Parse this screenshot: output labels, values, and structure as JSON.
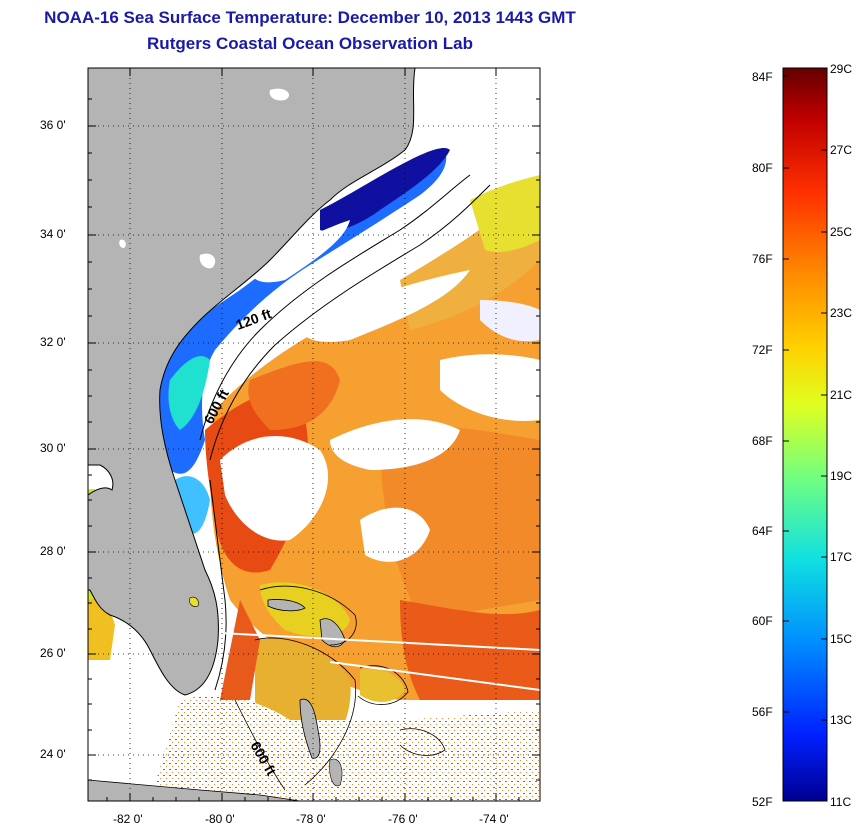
{
  "header": {
    "title": "NOAA-16 Sea Surface Temperature:  December 10, 2013 1443 GMT",
    "subtitle": "Rutgers Coastal Ocean Observation Lab"
  },
  "axes": {
    "lat_labels": [
      "36 0'",
      "34 0'",
      "32 0'",
      "30 0'",
      "28 0'",
      "26 0'",
      "24 0'"
    ],
    "lon_labels": [
      "-82 0'",
      "-80 0'",
      "-78 0'",
      "-76 0'",
      "-74 0'"
    ]
  },
  "contour_labels": [
    "120 ft",
    "600 ft",
    "600 ft"
  ],
  "colorbar": {
    "fahrenheit_labels": [
      "84F",
      "80F",
      "76F",
      "72F",
      "68F",
      "64F",
      "60F",
      "56F",
      "52F"
    ],
    "celsius_labels": [
      "29C",
      "27C",
      "25C",
      "23C",
      "21C",
      "19C",
      "17C",
      "15C",
      "13C",
      "11C"
    ],
    "colors": [
      "#6b0000",
      "#c80000",
      "#ff3a00",
      "#ff8c00",
      "#ffd200",
      "#e8ff1a",
      "#8cff6a",
      "#20e0d0",
      "#00a0ff",
      "#0040ff",
      "#0000b0"
    ]
  },
  "colors": {
    "land": "#b4b4b4",
    "title": "#1a1aa8",
    "ocean_warm": "#f06a10",
    "ocean_orange": "#f59a30",
    "ocean_red": "#e83a12",
    "cold": "#1e6cff",
    "cloud": "#ffffff"
  }
}
